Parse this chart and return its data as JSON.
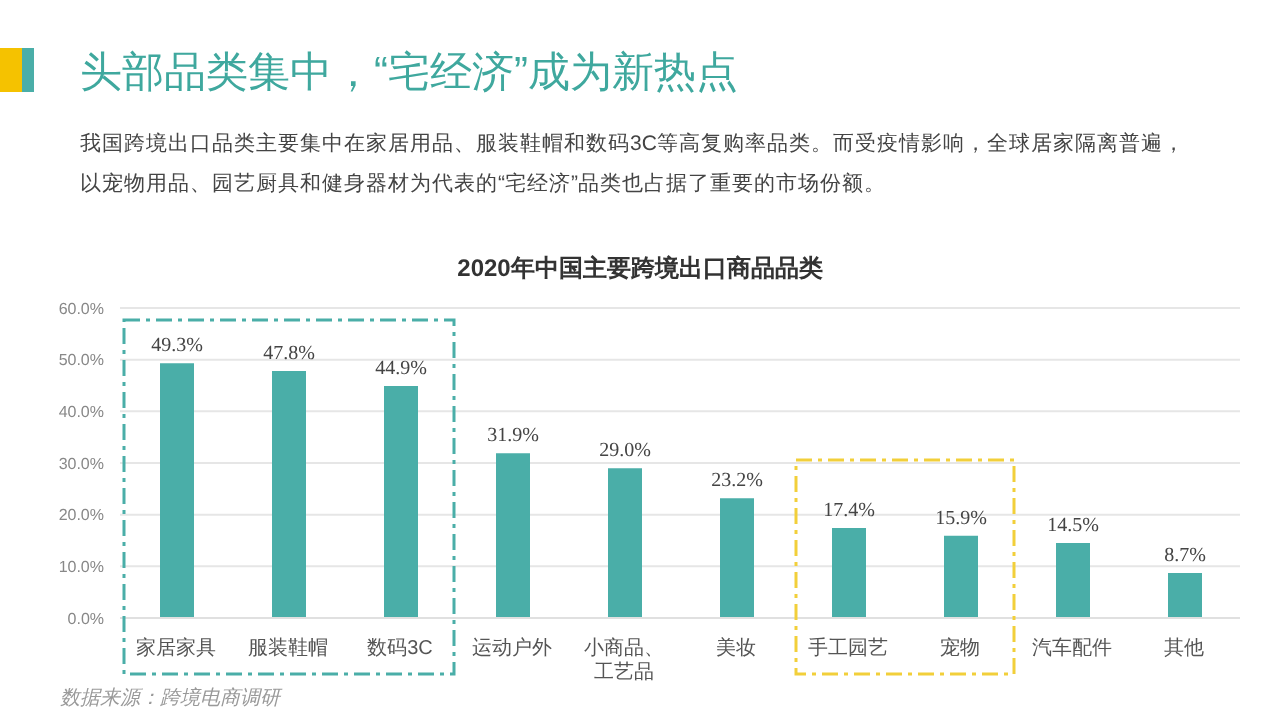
{
  "chart_data": {
    "type": "bar",
    "title": "2020年中国主要跨境出口商品品类",
    "annotations": [
      "头部品类集中，“宅经济”成为新热点",
      "我国跨境出口品类主要集中在家居用品、服装鞋帽和数码3C等高复购率品类。而受疫情影响，全球居家隔离普遍，以宠物用品、园艺厨具和健身器材为代表的“宅经济”品类也占据了重要的市场份额。",
      "数据来源：跨境电商调研"
    ],
    "categories": [
      "家居家具",
      "服装鞋帽",
      "数码3C",
      "运动户外",
      "小商品、工艺品",
      "美妆",
      "手工园艺",
      "宠物",
      "汽车配件",
      "其他"
    ],
    "values": [
      49.3,
      47.8,
      44.9,
      31.9,
      29.0,
      23.2,
      17.4,
      15.9,
      14.5,
      8.7
    ],
    "value_labels": [
      "49.3%",
      "47.8%",
      "44.9%",
      "31.9%",
      "29.0%",
      "23.2%",
      "17.4%",
      "15.9%",
      "14.5%",
      "8.7%"
    ],
    "color": "#4aaea8",
    "ylim": [
      0,
      60
    ],
    "yticks": [
      {
        "value": 0,
        "label": "0.0%"
      },
      {
        "value": 10,
        "label": "10.0%"
      },
      {
        "value": 20,
        "label": "20.0%"
      },
      {
        "value": 30,
        "label": "30.0%"
      },
      {
        "value": 40,
        "label": "40.0%"
      },
      {
        "value": 50,
        "label": "50.0%"
      },
      {
        "value": 60,
        "label": "60.0%"
      }
    ],
    "grid": "y"
  }
}
